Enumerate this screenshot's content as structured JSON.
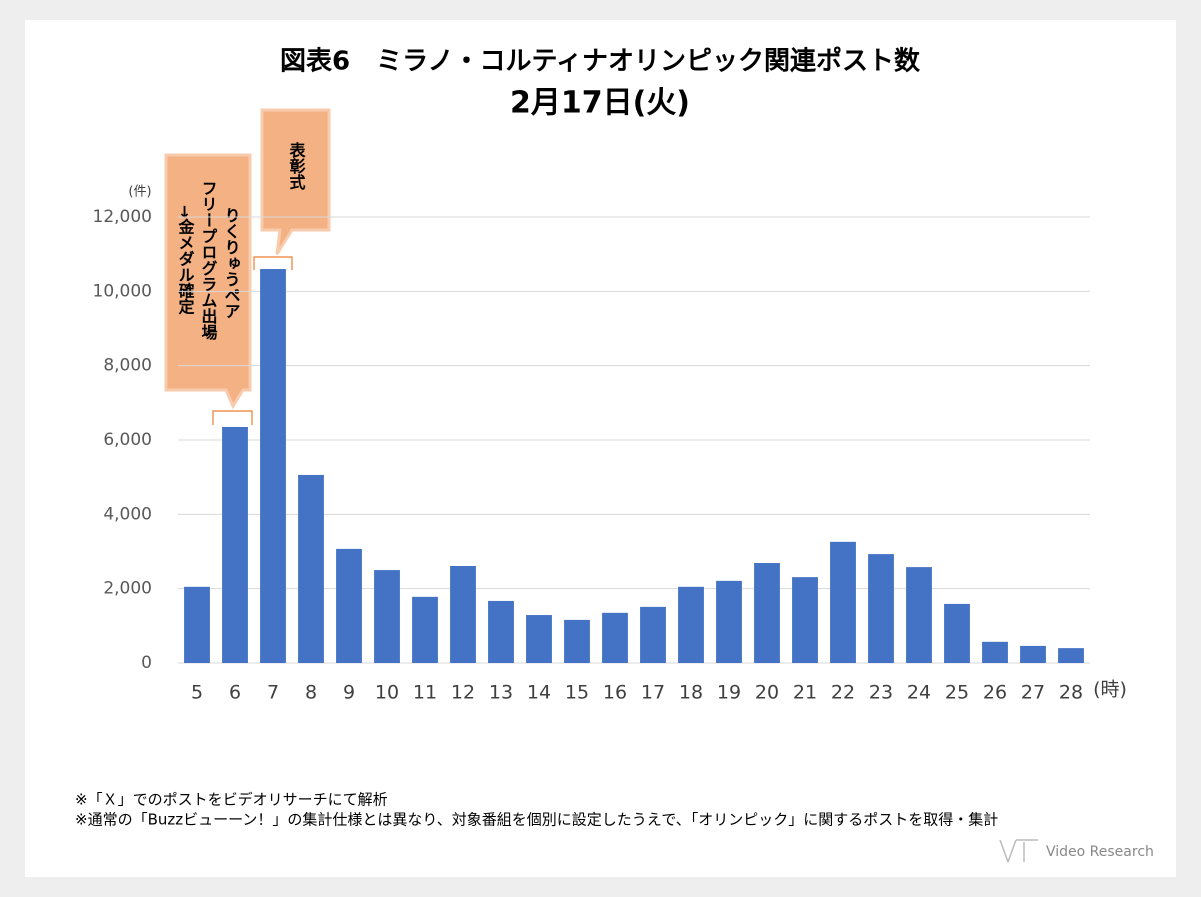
{
  "chart_data": {
    "type": "bar",
    "title": "図表6　ミラノ・コルティナオリンピック関連ポスト数",
    "subtitle": "2月17日(火)",
    "y_unit": "(件)",
    "x_unit": "(時)",
    "categories": [
      "5",
      "6",
      "7",
      "8",
      "9",
      "10",
      "11",
      "12",
      "13",
      "14",
      "15",
      "16",
      "17",
      "18",
      "19",
      "20",
      "21",
      "22",
      "23",
      "24",
      "25",
      "26",
      "27",
      "28"
    ],
    "values": [
      2050,
      6350,
      10600,
      5060,
      3070,
      2500,
      1780,
      2610,
      1670,
      1290,
      1160,
      1350,
      1510,
      2050,
      2210,
      2690,
      2310,
      3260,
      2930,
      2580,
      1590,
      570,
      460,
      400
    ],
    "color": "#4472c4",
    "ylim": [
      0,
      12000
    ],
    "yticks": [
      0,
      {
        "value": 2000,
        "label": "2,000"
      },
      {
        "value": 4000,
        "label": "4,000"
      },
      {
        "value": 6000,
        "label": "6,000"
      },
      {
        "value": 8000,
        "label": "8,000"
      },
      {
        "value": 10000,
        "label": "10,000"
      },
      {
        "value": 12000,
        "label": "12,000"
      }
    ],
    "grid": true,
    "annotations": [
      {
        "lines": [
          "りくりゅうペア",
          "フリープログラム出場",
          "→金メダル確定"
        ]
      },
      {
        "lines": [
          "表彰式"
        ]
      }
    ],
    "notes": [
      "※「Ｘ」でのポストをビデオリサーチにて解析",
      "※通常の「Buzzビューーン！」の集計仕様とは異なり、対象番組を個別に設定したうえで、「オリンピック」に関するポストを取得・集計"
    ],
    "logo": "Video Research"
  }
}
